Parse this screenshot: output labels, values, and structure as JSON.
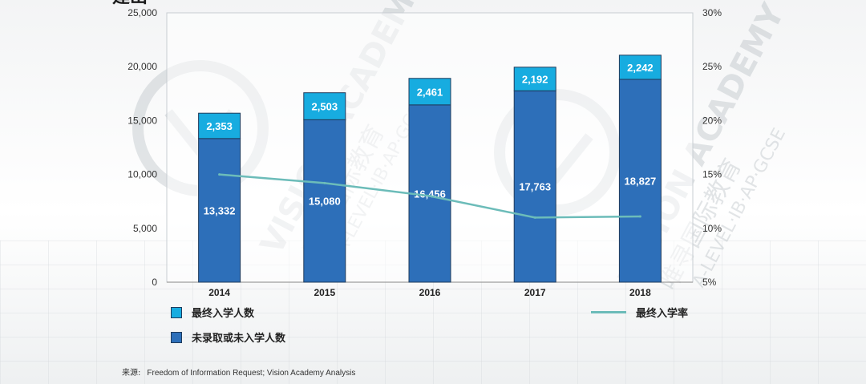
{
  "title_fragment": "建出",
  "colors": {
    "final_enrolled": "#17ace0",
    "not_enrolled": "#2d6fb9",
    "rate_line": "#6cbcb9",
    "plot_bg": "#ffffff",
    "watermark": "#9aa4ab"
  },
  "watermark": {
    "text_en": "VISION ACADEMY",
    "text_cn": "唯寻国际教育",
    "text_sub": "A-LEVEL·IB·AP·GCSE"
  },
  "chart_data": {
    "type": "bar",
    "stacked": true,
    "categories": [
      "2014",
      "2015",
      "2016",
      "2017",
      "2018"
    ],
    "series": [
      {
        "name": "未录取或未入学人数",
        "values": [
          13332,
          15080,
          16456,
          17763,
          18827
        ],
        "labels": [
          "13,332",
          "15,080",
          "16,456",
          "17,763",
          "18,827"
        ]
      },
      {
        "name": "最终入学人数",
        "values": [
          2353,
          2503,
          2461,
          2192,
          2242
        ],
        "labels": [
          "2,353",
          "2,503",
          "2,461",
          "2,192",
          "2,242"
        ]
      }
    ],
    "line_series": {
      "name": "最终入学率",
      "axis": "right",
      "values": [
        15.0,
        14.2,
        13.0,
        11.0,
        11.1
      ]
    },
    "left_axis": {
      "ylim": [
        0,
        25000
      ],
      "ticks": [
        0,
        5000,
        10000,
        15000,
        20000,
        25000
      ],
      "tick_labels": [
        "0",
        "5,000",
        "10,000",
        "15,000",
        "20,000",
        "25,000"
      ]
    },
    "right_axis": {
      "ylim": [
        5,
        30
      ],
      "ticks": [
        5,
        10,
        15,
        20,
        25,
        30
      ],
      "tick_labels": [
        "5%",
        "10%",
        "15%",
        "20%",
        "25%",
        "30%"
      ]
    },
    "grid": false,
    "legend": [
      {
        "label": "最终入学人数",
        "kind": "bar",
        "series_index": 1
      },
      {
        "label": "未录取或未入学人数",
        "kind": "bar",
        "series_index": 0
      },
      {
        "label": "最终入学率",
        "kind": "line"
      }
    ],
    "legend_placement": "bottom"
  },
  "source": {
    "prefix": "来源:",
    "text": "Freedom of Information Request; Vision Academy Analysis"
  }
}
